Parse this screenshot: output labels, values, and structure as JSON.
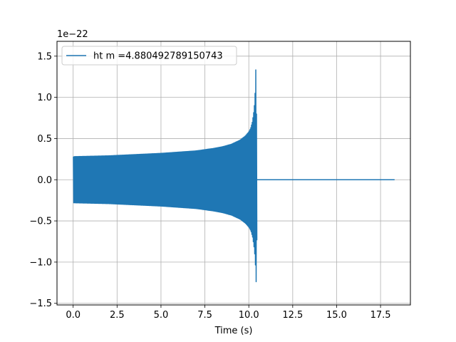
{
  "chart_data": {
    "type": "line",
    "title": "",
    "xlabel": "Time (s)",
    "ylabel": "",
    "offset_text": "1e−22",
    "xlim": [
      -0.92,
      19.2
    ],
    "ylim": [
      -1.52,
      1.68
    ],
    "x_ticks": [
      0.0,
      2.5,
      5.0,
      7.5,
      10.0,
      12.5,
      15.0,
      17.5
    ],
    "x_tick_labels": [
      "0.0",
      "2.5",
      "5.0",
      "7.5",
      "10.0",
      "12.5",
      "15.0",
      "17.5"
    ],
    "y_ticks": [
      -1.5,
      -1.0,
      -0.5,
      0.0,
      0.5,
      1.0,
      1.5
    ],
    "y_tick_labels": [
      "−1.5",
      "−1.0",
      "−0.5",
      "0.0",
      "0.5",
      "1.0",
      "1.5"
    ],
    "grid": true,
    "legend_position": "top-left",
    "series": [
      {
        "name": "ht m =4.880492789150743",
        "color": "#1f77b4",
        "envelope": {
          "t": [
            0.0,
            1.0,
            2.0,
            3.0,
            4.0,
            5.0,
            6.0,
            7.0,
            8.0,
            8.5,
            9.0,
            9.5,
            9.8,
            10.0,
            10.1,
            10.2,
            10.3,
            10.35,
            10.4,
            10.42,
            10.45,
            10.5
          ],
          "upper": [
            0.28,
            0.285,
            0.29,
            0.3,
            0.31,
            0.32,
            0.335,
            0.35,
            0.38,
            0.4,
            0.43,
            0.48,
            0.53,
            0.58,
            0.62,
            0.7,
            0.85,
            1.0,
            1.35,
            1.55,
            0.3,
            0.01
          ],
          "lower": [
            -0.28,
            -0.285,
            -0.29,
            -0.3,
            -0.31,
            -0.32,
            -0.335,
            -0.35,
            -0.38,
            -0.4,
            -0.43,
            -0.48,
            -0.53,
            -0.58,
            -0.62,
            -0.7,
            -0.85,
            -1.0,
            -1.25,
            -1.38,
            -0.3,
            -0.01
          ]
        },
        "start_time": 0.0,
        "merger_time": 10.42,
        "end_time": 18.3,
        "post_merger_value": 0.0
      }
    ]
  }
}
